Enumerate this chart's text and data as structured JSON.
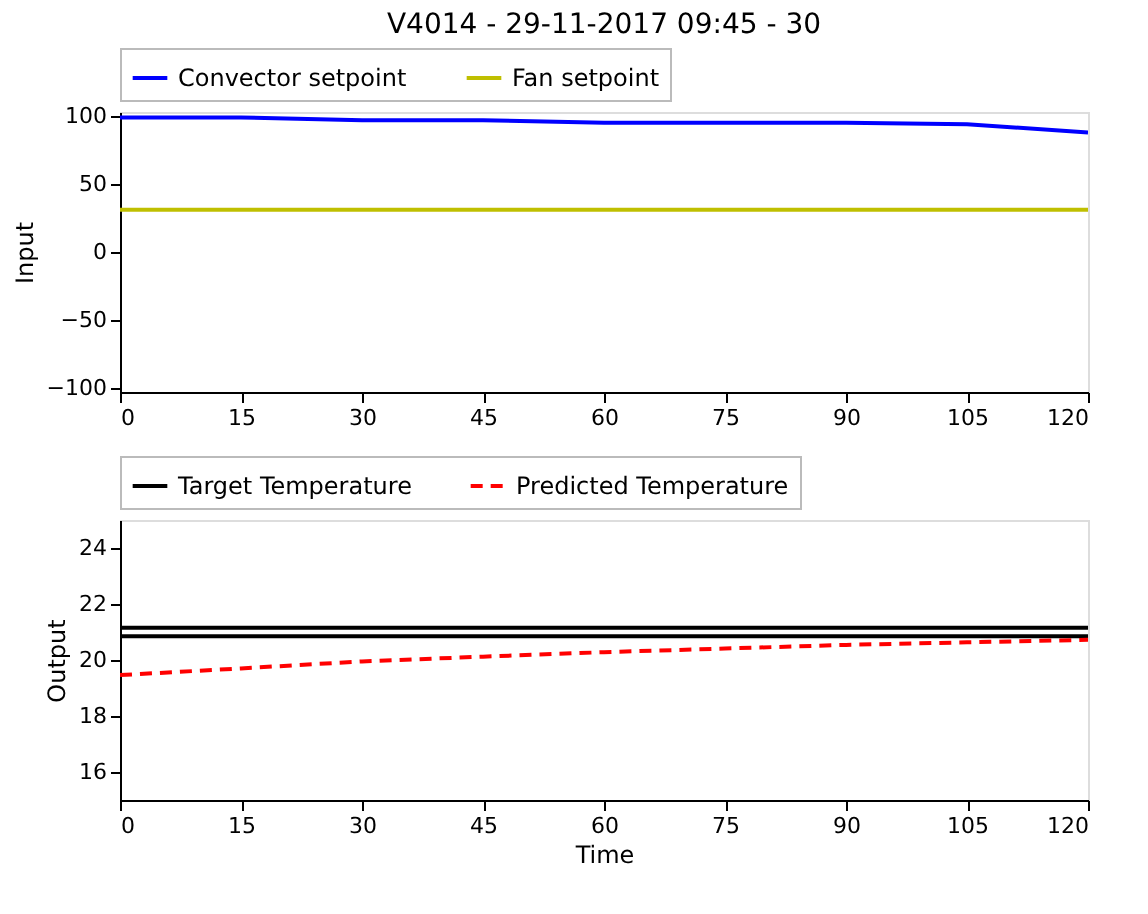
{
  "chart_data": [
    {
      "type": "line",
      "title": "V4014 - 29-11-2017 09:45 - 30",
      "ylabel": "Input",
      "x": [
        0,
        15,
        30,
        45,
        60,
        75,
        90,
        105,
        120
      ],
      "series": [
        {
          "name": "Convector setpoint",
          "color": "#0000ff",
          "values": [
            99,
            99,
            97,
            97,
            95,
            95,
            95,
            94,
            88
          ]
        },
        {
          "name": "Fan setpoint",
          "color": "#bfbf00",
          "values": [
            31,
            31,
            31,
            31,
            31,
            31,
            31,
            31,
            31
          ]
        }
      ],
      "xlim": [
        0,
        120
      ],
      "xticks": [
        0,
        15,
        30,
        45,
        60,
        75,
        90,
        105,
        120
      ],
      "ylim": [
        -103,
        103
      ],
      "yticks": [
        -100,
        -50,
        0,
        50,
        100
      ],
      "legend": "top",
      "line_style": "solid",
      "grid": false
    },
    {
      "type": "line",
      "xlabel": "Time",
      "ylabel": "Output",
      "x": [
        0,
        15,
        30,
        45,
        60,
        75,
        90,
        105,
        120
      ],
      "series": [
        {
          "name": "Target Temperature",
          "color": "#000000",
          "values": [
            21.15,
            21.15,
            21.15,
            21.15,
            21.15,
            21.15,
            21.15,
            21.15,
            21.15
          ]
        },
        {
          "color": "#000000",
          "values": [
            20.85,
            20.85,
            20.85,
            20.85,
            20.85,
            20.85,
            20.85,
            20.85,
            20.85
          ]
        },
        {
          "name": "Predicted Temperature",
          "color": "#ff0000",
          "line_style": "dashed",
          "values": [
            19.46,
            19.7,
            19.95,
            20.12,
            20.28,
            20.41,
            20.54,
            20.63,
            20.72
          ]
        }
      ],
      "xlim": [
        0,
        120
      ],
      "xticks": [
        0,
        15,
        30,
        45,
        60,
        75,
        90,
        105,
        120
      ],
      "ylim": [
        15,
        25
      ],
      "yticks": [
        16,
        18,
        20,
        22,
        24
      ],
      "legend": "top",
      "line_style": "solid",
      "grid": false
    }
  ]
}
